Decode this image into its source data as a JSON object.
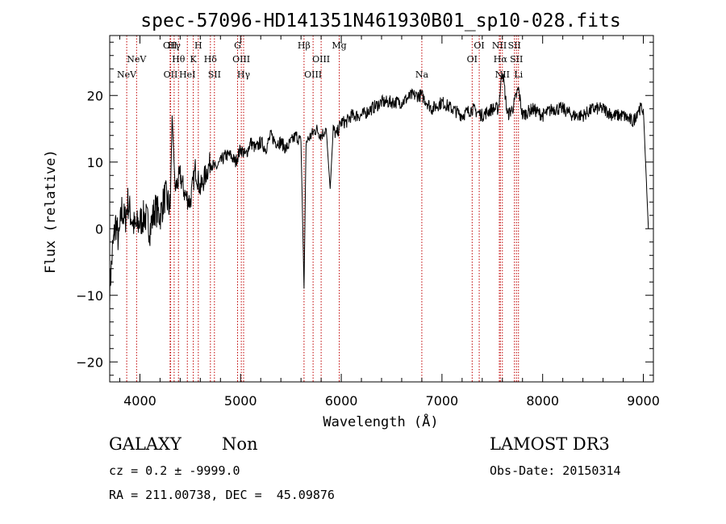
{
  "chart_data": {
    "type": "line",
    "title": "spec-57096-HD141351N461930B01_sp10-028.fits",
    "xlabel": "Wavelength (Å)",
    "ylabel": "Flux (relative)",
    "xlim": [
      3700,
      9100
    ],
    "ylim": [
      -23,
      29
    ],
    "x_ticks": [
      4000,
      5000,
      6000,
      7000,
      8000,
      9000
    ],
    "y_ticks": [
      -20,
      -10,
      0,
      10,
      20
    ],
    "grid": false,
    "series": [
      {
        "name": "flux",
        "x": [
          3700,
          3730,
          3760,
          3790,
          3820,
          3850,
          3880,
          3910,
          3950,
          4000,
          4050,
          4100,
          4150,
          4200,
          4250,
          4300,
          4320,
          4350,
          4400,
          4450,
          4500,
          4550,
          4600,
          4650,
          4700,
          4750,
          4800,
          4850,
          4900,
          4950,
          5000,
          5050,
          5100,
          5150,
          5200,
          5250,
          5300,
          5350,
          5400,
          5450,
          5500,
          5550,
          5600,
          5630,
          5650,
          5700,
          5750,
          5800,
          5850,
          5890,
          5920,
          5950,
          6000,
          6050,
          6100,
          6150,
          6200,
          6300,
          6400,
          6500,
          6600,
          6700,
          6800,
          6900,
          7000,
          7100,
          7200,
          7300,
          7400,
          7500,
          7560,
          7600,
          7650,
          7700,
          7760,
          7800,
          7900,
          8000,
          8100,
          8200,
          8300,
          8400,
          8500,
          8600,
          8700,
          8800,
          8900,
          8950,
          9000,
          9050
        ],
        "y": [
          -9,
          -3,
          1,
          -2,
          3,
          1,
          4,
          2,
          0,
          1,
          2,
          0,
          3,
          2,
          5,
          3,
          17,
          6,
          8,
          5,
          4,
          9,
          6,
          8,
          10,
          9,
          10,
          11,
          11,
          10,
          12,
          11,
          13,
          12,
          13,
          12,
          14,
          13,
          13,
          12,
          13,
          14,
          13,
          -9,
          13,
          14,
          15,
          14,
          15,
          6,
          15,
          14,
          16,
          16,
          17,
          17,
          17,
          18,
          19,
          19,
          19,
          20,
          20,
          18,
          19,
          18,
          17,
          18,
          17,
          18,
          18,
          24,
          17,
          18,
          21,
          17,
          18,
          17,
          18,
          18,
          17,
          17,
          18,
          18,
          17,
          17,
          16,
          18,
          18,
          0
        ]
      }
    ],
    "line_markers": [
      {
        "wavelength": 3869,
        "label": "NeV",
        "row": 2
      },
      {
        "wavelength": 3967,
        "label": "NeV",
        "row": 1
      },
      {
        "wavelength": 4300,
        "label": "OII",
        "row": 0
      },
      {
        "wavelength": 4305,
        "label": "OII",
        "row": 2
      },
      {
        "wavelength": 4340,
        "label": "Hγ",
        "row": 0
      },
      {
        "wavelength": 4383,
        "label": "Hθ",
        "row": 1
      },
      {
        "wavelength": 4471,
        "label": "HeI",
        "row": 2
      },
      {
        "wavelength": 4530,
        "label": "K",
        "row": 1
      },
      {
        "wavelength": 4580,
        "label": "H",
        "row": 0
      },
      {
        "wavelength": 4700,
        "label": "Hδ",
        "row": 1
      },
      {
        "wavelength": 4740,
        "label": "SII",
        "row": 2
      },
      {
        "wavelength": 4970,
        "label": "G",
        "row": 0
      },
      {
        "wavelength": 5007,
        "label": "OIII",
        "row": 1
      },
      {
        "wavelength": 5030,
        "label": "Hγ",
        "row": 2
      },
      {
        "wavelength": 5630,
        "label": "Hβ",
        "row": 0
      },
      {
        "wavelength": 5720,
        "label": "OIII",
        "row": 2
      },
      {
        "wavelength": 5800,
        "label": "OIII",
        "row": 1
      },
      {
        "wavelength": 5980,
        "label": "Mg",
        "row": 0
      },
      {
        "wavelength": 6800,
        "label": "Na",
        "row": 2
      },
      {
        "wavelength": 7300,
        "label": "OI",
        "row": 1
      },
      {
        "wavelength": 7370,
        "label": "OI",
        "row": 0
      },
      {
        "wavelength": 7570,
        "label": "NII",
        "row": 0
      },
      {
        "wavelength": 7580,
        "label": "Hα",
        "row": 1
      },
      {
        "wavelength": 7600,
        "label": "NII",
        "row": 2
      },
      {
        "wavelength": 7720,
        "label": "SII",
        "row": 0
      },
      {
        "wavelength": 7740,
        "label": "SII",
        "row": 1
      },
      {
        "wavelength": 7760,
        "label": "Li",
        "row": 2
      }
    ]
  },
  "info": {
    "class": "GALAXY",
    "subclass": "Non",
    "survey": "LAMOST DR3",
    "cz": "cz = 0.2 ± -9999.0",
    "obs_date": "Obs-Date: 20150314",
    "radec": "RA = 211.00738, DEC =  45.09876"
  },
  "colors": {
    "axis": "#000000",
    "spectrum": "#000000",
    "line_marker": "#c00000",
    "background": "#ffffff"
  }
}
